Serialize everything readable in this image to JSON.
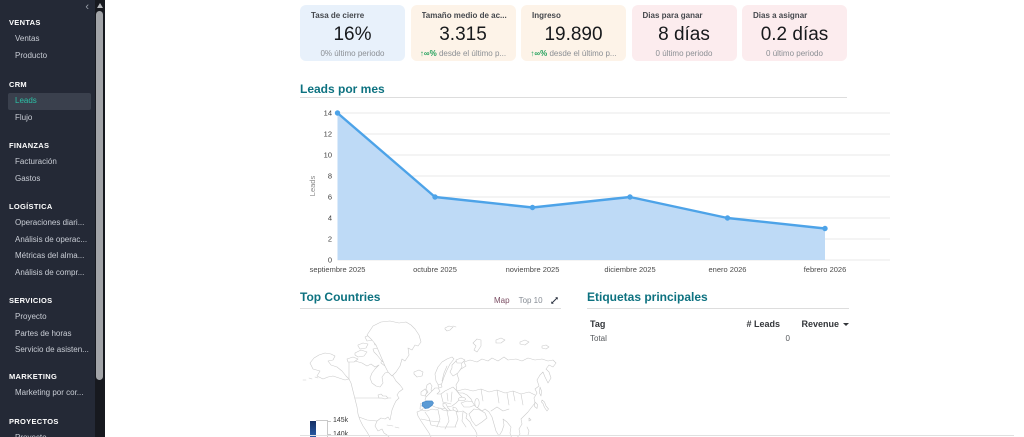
{
  "sidebar": {
    "collapse_icon": "‹",
    "sections": [
      {
        "label": "VENTAS",
        "items": [
          {
            "label": "Ventas"
          },
          {
            "label": "Producto"
          }
        ]
      },
      {
        "label": "CRM",
        "items": [
          {
            "label": "Leads",
            "active": true
          },
          {
            "label": "Flujo"
          }
        ]
      },
      {
        "label": "FINANZAS",
        "items": [
          {
            "label": "Facturación"
          },
          {
            "label": "Gastos"
          }
        ]
      },
      {
        "label": "LOGÍSTICA",
        "items": [
          {
            "label": "Operaciones diari..."
          },
          {
            "label": "Análisis de operac..."
          },
          {
            "label": "Métricas del alma..."
          },
          {
            "label": "Análisis de compr..."
          }
        ]
      },
      {
        "label": "SERVICIOS",
        "items": [
          {
            "label": "Proyecto"
          },
          {
            "label": "Partes de horas"
          },
          {
            "label": "Servicio de asisten..."
          }
        ]
      },
      {
        "label": "MARKETING",
        "items": [
          {
            "label": "Marketing por cor..."
          }
        ]
      },
      {
        "label": "PROYECTOS",
        "items": [
          {
            "label": "Proyecto"
          }
        ]
      }
    ]
  },
  "kpi_cards": [
    {
      "title": "Tasa de cierre",
      "value": "16%",
      "trend": "",
      "subtitle": "0% último periodo",
      "bg": "#e8f1fb"
    },
    {
      "title": "Tamaño medio de ac...",
      "value": "3.315",
      "trend": "↑∞%",
      "subtitle": " desde el último p...",
      "bg": "#fdf3e8"
    },
    {
      "title": "Ingreso",
      "value": "19.890",
      "trend": "↑∞%",
      "subtitle": " desde el último p...",
      "bg": "#fdf3e8"
    },
    {
      "title": "Dias para ganar",
      "value": "8 días",
      "trend": "",
      "subtitle": "0 último periodo",
      "bg": "#fcecee"
    },
    {
      "title": "Dias a asignar",
      "value": "0.2 días",
      "trend": "",
      "subtitle": "0 último periodo",
      "bg": "#fcecee"
    }
  ],
  "chart_data": {
    "type": "area",
    "title": "Leads por mes",
    "x": [
      "septiembre 2025",
      "octubre 2025",
      "noviembre 2025",
      "diciembre 2025",
      "enero 2026",
      "febrero 2026"
    ],
    "values": [
      14,
      6,
      5,
      6,
      4,
      3
    ],
    "ylabel": "Leads",
    "ylim": [
      0,
      14
    ],
    "yticks": [
      0,
      2,
      4,
      6,
      8,
      10,
      12,
      14
    ],
    "grid": true,
    "legend_position": "none",
    "line_color": "#4da3e8",
    "fill_color": "#bedaf6"
  },
  "map_section": {
    "title": "Top Countries",
    "view_map_label": "Map",
    "view_top10_label": "Top 10",
    "highlight_color": "#5b9bd5",
    "highlight_stroke": "#4788c8",
    "legend_labels": [
      "145k",
      "140k"
    ]
  },
  "table_section": {
    "title": "Etiquetas principales",
    "col_tag": "Tag",
    "col_leads": "# Leads",
    "col_revenue": "Revenue",
    "row_total_label": "Total",
    "row_total_leads": "0"
  }
}
